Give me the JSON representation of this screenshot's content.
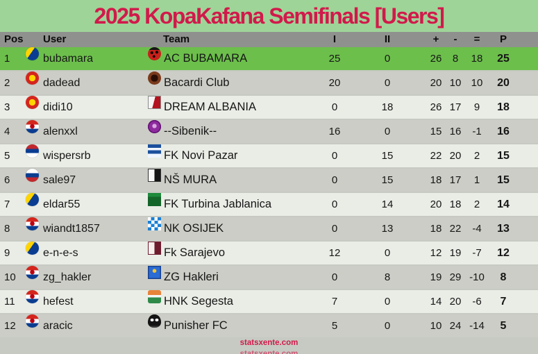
{
  "chart_data": {
    "type": "table",
    "title": "2025 KopaKafana Semifinals [Users]",
    "columns": [
      "Pos",
      "User",
      "Team",
      "I",
      "II",
      "+",
      "-",
      "=",
      "P"
    ],
    "rows": [
      {
        "pos": "1",
        "flag": "bosnia",
        "user": "bubamara",
        "crest": "ladybug",
        "team": "AC BUBAMARA",
        "i": "25",
        "ii": "0",
        "plus": "26",
        "minus": "8",
        "eq": "18",
        "p": "25",
        "highlight": true
      },
      {
        "pos": "2",
        "flag": "macedonia",
        "user": "dadead",
        "crest": "bacardi",
        "team": "Bacardi Club",
        "i": "20",
        "ii": "0",
        "plus": "20",
        "minus": "10",
        "eq": "10",
        "p": "20",
        "highlight": false
      },
      {
        "pos": "3",
        "flag": "macedonia",
        "user": "didi10",
        "crest": "albania",
        "team": "DREAM ALBANIA",
        "i": "0",
        "ii": "18",
        "plus": "26",
        "minus": "17",
        "eq": "9",
        "p": "18",
        "highlight": false
      },
      {
        "pos": "4",
        "flag": "croatia",
        "user": "alenxxl",
        "crest": "sibenik",
        "team": "--Sibenik--",
        "i": "16",
        "ii": "0",
        "plus": "15",
        "minus": "16",
        "eq": "-1",
        "p": "16",
        "highlight": false
      },
      {
        "pos": "5",
        "flag": "serbia",
        "user": "wispersrb",
        "crest": "novipazar",
        "team": "FK Novi Pazar",
        "i": "0",
        "ii": "15",
        "plus": "22",
        "minus": "20",
        "eq": "2",
        "p": "15",
        "highlight": false
      },
      {
        "pos": "6",
        "flag": "slovenia",
        "user": "sale97",
        "crest": "mura",
        "team": "NŠ MURA",
        "i": "0",
        "ii": "15",
        "plus": "18",
        "minus": "17",
        "eq": "1",
        "p": "15",
        "highlight": false
      },
      {
        "pos": "7",
        "flag": "bosnia",
        "user": "eldar55",
        "crest": "turbina",
        "team": "FK Turbina Jablanica",
        "i": "0",
        "ii": "14",
        "plus": "20",
        "minus": "18",
        "eq": "2",
        "p": "14",
        "highlight": false
      },
      {
        "pos": "8",
        "flag": "croatia",
        "user": "wiandt1857",
        "crest": "osijek",
        "team": "NK OSIJEK",
        "i": "0",
        "ii": "13",
        "plus": "18",
        "minus": "22",
        "eq": "-4",
        "p": "13",
        "highlight": false
      },
      {
        "pos": "9",
        "flag": "bosnia",
        "user": "e-n-e-s",
        "crest": "sarajevo",
        "team": "Fk Sarajevo",
        "i": "12",
        "ii": "0",
        "plus": "12",
        "minus": "19",
        "eq": "-7",
        "p": "12",
        "highlight": false
      },
      {
        "pos": "10",
        "flag": "croatia",
        "user": "zg_hakler",
        "crest": "hakleri",
        "team": "ZG Hakleri",
        "i": "0",
        "ii": "8",
        "plus": "19",
        "minus": "29",
        "eq": "-10",
        "p": "8",
        "highlight": false
      },
      {
        "pos": "11",
        "flag": "croatia",
        "user": "hefest",
        "crest": "segesta",
        "team": "HNK Segesta",
        "i": "7",
        "ii": "0",
        "plus": "14",
        "minus": "20",
        "eq": "-6",
        "p": "7",
        "highlight": false
      },
      {
        "pos": "12",
        "flag": "croatia",
        "user": "aracic",
        "crest": "punisher",
        "team": "Punisher FC",
        "i": "5",
        "ii": "0",
        "plus": "10",
        "minus": "24",
        "eq": "-14",
        "p": "5",
        "highlight": false
      }
    ]
  },
  "footer": {
    "site": "statsxente.com"
  },
  "colors": {
    "title_bg": "#9fd498",
    "title_text": "#d11a4b",
    "header_bg": "#8f918e",
    "row_highlight": "#6cbf4b",
    "row_gray": "#cccdc6",
    "row_light": "#eaede6",
    "page_bg": "#c6cac2"
  }
}
